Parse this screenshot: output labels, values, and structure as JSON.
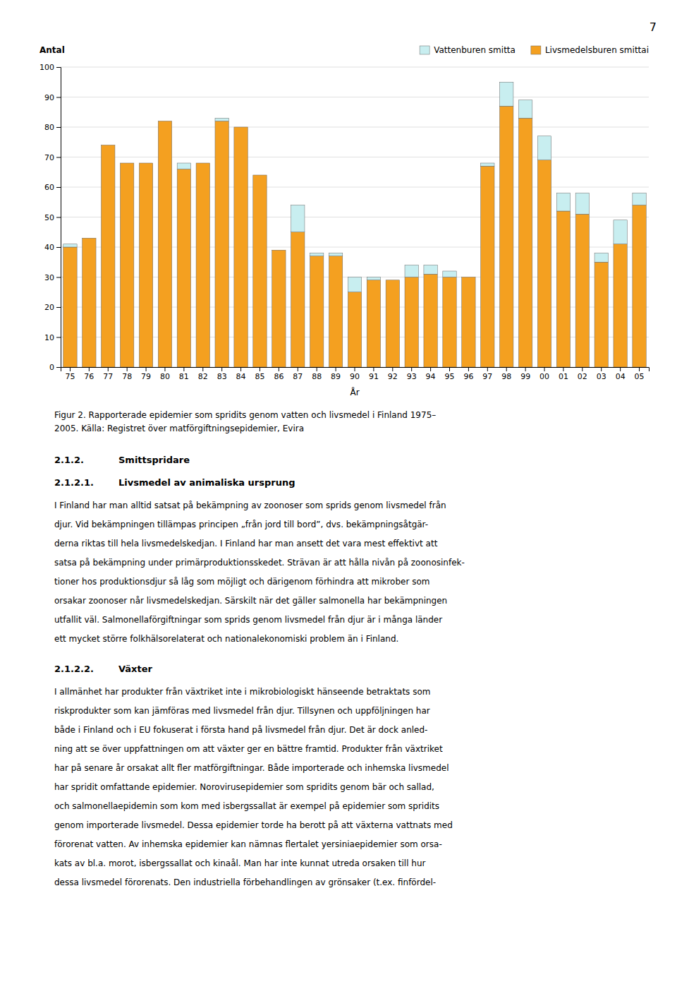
{
  "chart_data": {
    "type": "bar",
    "stacked": true,
    "xlabel": "År",
    "ylabel": "Antal",
    "categories": [
      "75",
      "76",
      "77",
      "78",
      "79",
      "80",
      "81",
      "82",
      "83",
      "84",
      "85",
      "86",
      "87",
      "88",
      "89",
      "90",
      "91",
      "92",
      "93",
      "94",
      "95",
      "96",
      "97",
      "98",
      "99",
      "00",
      "01",
      "02",
      "03",
      "04",
      "05"
    ],
    "series": [
      {
        "name": "Livsmedelsburen smittai",
        "color": "#F4A020",
        "values": [
          40,
          43,
          74,
          68,
          68,
          82,
          66,
          68,
          82,
          80,
          64,
          39,
          45,
          37,
          37,
          25,
          29,
          29,
          30,
          31,
          30,
          30,
          67,
          87,
          83,
          69,
          52,
          51,
          35,
          41,
          54
        ]
      },
      {
        "name": "Vattenburen smitta",
        "color": "#C8EEF0",
        "values": [
          1,
          0,
          0,
          0,
          0,
          0,
          2,
          0,
          1,
          0,
          0,
          0,
          9,
          1,
          1,
          5,
          1,
          0,
          4,
          3,
          2,
          0,
          1,
          8,
          6,
          8,
          6,
          7,
          3,
          8,
          4
        ]
      }
    ],
    "ylim": [
      0,
      100
    ],
    "yticks": [
      0,
      10,
      20,
      30,
      40,
      50,
      60,
      70,
      80,
      90,
      100
    ],
    "grid": true,
    "legend": "upper right"
  },
  "page": {
    "number": "7",
    "caption": [
      "Figur 2. Rapporterade epidemier som spridits genom vatten och livsmedel i Finland 1975–",
      "2005. Källa: Registret över matförgiftningsepidemier, Evira"
    ],
    "sections": [
      {
        "number": "2.1.2.",
        "title": "Smittspridare"
      },
      {
        "number": "2.1.2.1.",
        "title": "Livsmedel av animaliska ursprung",
        "lines": [
          "I Finland har man alltid satsat på bekämpning av zoonoser som sprids genom livsmedel från",
          "djur. Vid bekämpningen tillämpas principen „från jord till bord”, dvs. bekämpningsåtgär-",
          "derna riktas till hela livsmedelskedjan. I Finland har man ansett det vara mest effektivt att",
          "satsa på bekämpning under primärproduktionsskedet. Strävan är att hålla nivån på zoonosinfek-",
          "tioner hos produktionsdjur så låg som möjligt och därigenom förhindra att mikrober som",
          "orsakar zoonoser når livsmedelskedjan. Särskilt när det gäller salmonella har bekämpningen",
          "utfallit väl. Salmonellaförgiftningar som sprids genom livsmedel från djur är i många länder",
          "ett mycket större folkhälsorelaterat och nationalekonomiski problem än i Finland."
        ]
      },
      {
        "number": "2.1.2.2.",
        "title": "Växter",
        "lines": [
          "I allmänhet har produkter från växtriket inte i mikrobiologiskt hänseende betraktats som",
          "riskprodukter som kan jämföras med livsmedel från djur. Tillsynen och uppföljningen har",
          "både i Finland och i EU fokuserat i första hand på livsmedel från djur. Det är dock anled-",
          "ning att se över uppfattningen om att växter ger en bättre framtid. Produkter från växtriket",
          "har på senare år orsakat allt fler matförgiftningar. Både importerade och inhemska livsmedel",
          "har spridit omfattande epidemier. Norovirusepidemier som spridits genom bär och sallad,",
          "och salmonellaepidemin som kom med isbergssallat är exempel på epidemier som spridits",
          "genom importerade livsmedel. Dessa epidemier torde ha berott på att växterna vattnats med",
          "förorenat vatten. Av inhemska epidemier kan nämnas flertalet yersiniaepidemier som orsa-",
          "kats av bl.a. morot, isbergssallat och kinaål. Man har inte kunnat utreda orsaken till hur",
          "dessa livsmedel förorenats. Den industriella förbehandlingen av grönsaker (t.ex. finfördel-"
        ]
      }
    ]
  }
}
